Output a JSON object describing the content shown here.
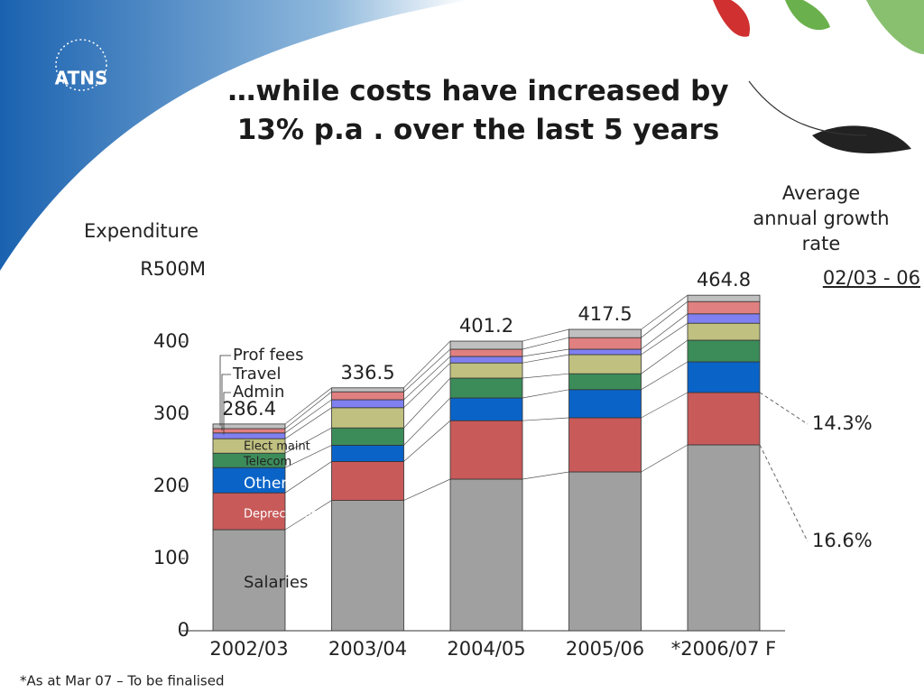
{
  "title": "…while costs have increased by 13% p.a . over the last 5 years",
  "logo": "ATNS",
  "footnote": "*As at Mar 07 – To be finalised",
  "chart_data": {
    "type": "bar",
    "stacked": true,
    "y_label": "Expenditure",
    "categories": [
      "2002/03",
      "2003/04",
      "2004/05",
      "2005/06",
      "*2006/07 F"
    ],
    "series": [
      {
        "name": "Salaries",
        "color": "#a0a0a0",
        "values": [
          140,
          180.5,
          210,
          220,
          257.5
        ]
      },
      {
        "name": "Depreciation",
        "color": "#c85a5a",
        "values": [
          51,
          54,
          81,
          75,
          72.5
        ]
      },
      {
        "name": "Other",
        "color": "#0a64c8",
        "values": [
          35,
          22.5,
          31.5,
          39,
          42.5
        ]
      },
      {
        "name": "Telecom",
        "color": "#3c8c5a",
        "values": [
          20,
          24,
          27.5,
          22,
          30
        ]
      },
      {
        "name": "Elect maint",
        "color": "#c0c080",
        "values": [
          20,
          28,
          21,
          26.5,
          23.5
        ]
      },
      {
        "name": "Admin",
        "color": "#8080f0",
        "values": [
          8,
          11,
          9,
          7.5,
          13
        ]
      },
      {
        "name": "Travel",
        "color": "#e08080",
        "values": [
          6,
          11,
          10,
          16,
          17
        ]
      },
      {
        "name": "Prof fees",
        "color": "#c0c0c0",
        "values": [
          6.4,
          5.5,
          11.2,
          11.5,
          8.8
        ]
      }
    ],
    "totals": [
      286.4,
      336.5,
      401.2,
      417.5,
      464.8
    ],
    "ylim": [
      0,
      500
    ],
    "yticks": [
      0,
      100,
      200,
      300,
      400,
      {
        "value": 500,
        "label": "R500M"
      }
    ],
    "growth_title": "Average annual growth rate",
    "growth_period": "02/03 - 06",
    "annotations": [
      "14.3%",
      "16.6%"
    ]
  }
}
